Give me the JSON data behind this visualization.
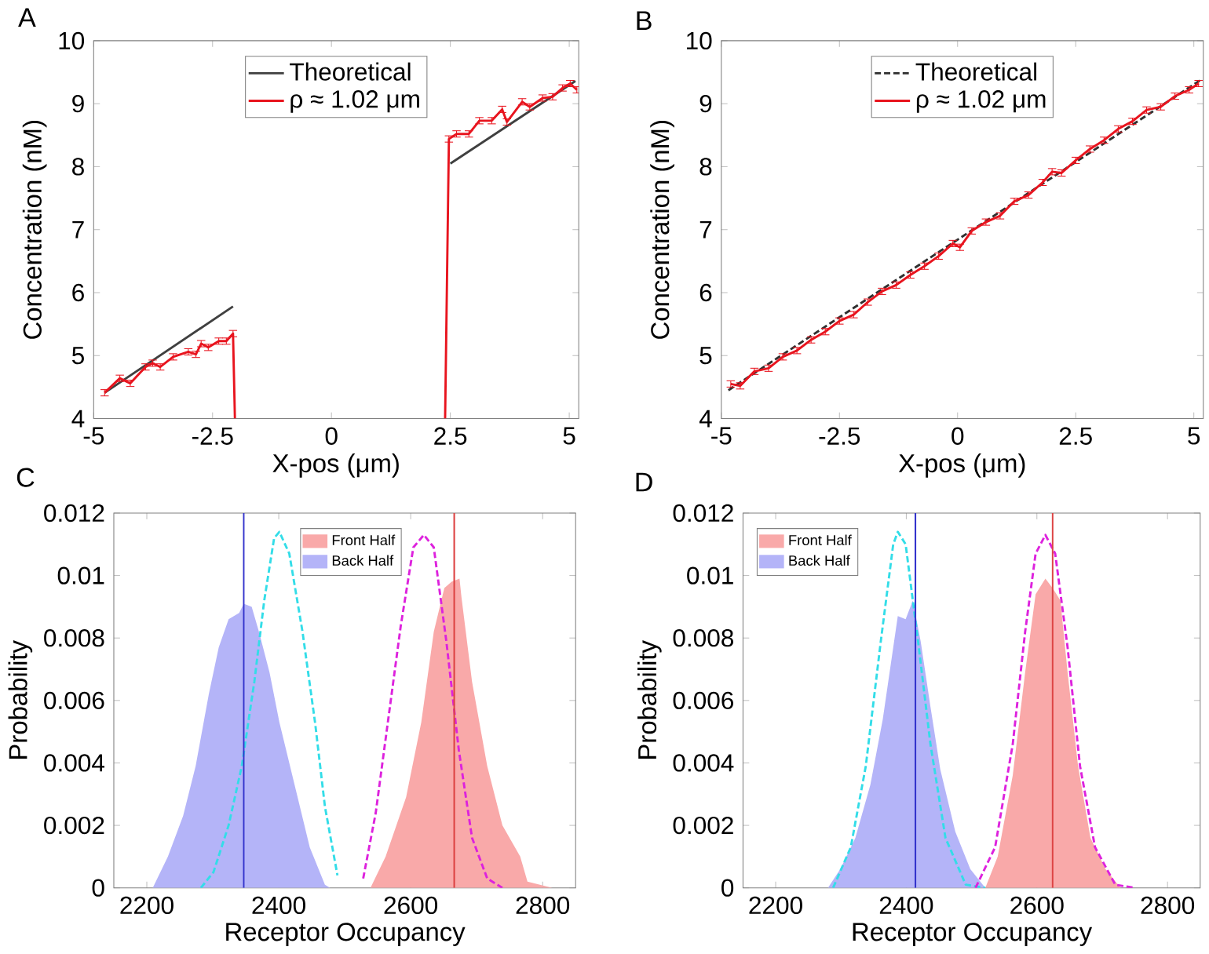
{
  "chart_data": [
    {
      "type": "line",
      "title": "A",
      "xlabel": "X-pos (μm)",
      "ylabel": "Concentration (nM)",
      "xlim": [
        -5,
        5.2
      ],
      "ylim": [
        4,
        10
      ],
      "xticks": [
        -5,
        -2.5,
        0,
        2.5,
        5
      ],
      "yticks": [
        4,
        5,
        6,
        7,
        8,
        9,
        10
      ],
      "legend": "top",
      "series": [
        {
          "name": "Theoretical",
          "color": "#404040",
          "line_style": "solid",
          "x": [
            -4.77,
            -2.07,
            0,
            2.5,
            5.13
          ],
          "values": [
            4.41,
            5.78,
            null,
            8.05,
            9.36
          ]
        },
        {
          "name": "ρ ≈ 1.02 μm",
          "color": "#e8141e",
          "line_style": "solid",
          "x": [
            -4.77,
            -4.45,
            -4.23,
            -3.91,
            -3.76,
            -3.6,
            -3.33,
            -3.01,
            -2.85,
            -2.74,
            -2.59,
            -2.37,
            -2.21,
            -2.07,
            -2.03,
            0,
            2.39,
            2.47,
            2.63,
            2.89,
            3.11,
            3.37,
            3.59,
            3.69,
            4.01,
            4.17,
            4.44,
            4.65,
            4.86,
            5.02,
            5.16
          ],
          "values": [
            4.41,
            4.64,
            4.56,
            4.82,
            4.88,
            4.82,
            4.98,
            5.06,
            5.02,
            5.19,
            5.13,
            5.23,
            5.23,
            5.35,
            4.0,
            null,
            4.0,
            8.44,
            8.52,
            8.52,
            8.73,
            8.73,
            8.91,
            8.71,
            9.03,
            8.95,
            9.09,
            9.11,
            9.25,
            9.32,
            9.22
          ],
          "errors": [
            0.05,
            0.05,
            0.05,
            0.05,
            0.05,
            0.05,
            0.05,
            0.05,
            0.05,
            0.05,
            0.05,
            0.05,
            0.05,
            0.05,
            null,
            null,
            null,
            0.05,
            0.05,
            0.05,
            0.05,
            0.05,
            0.05,
            0.05,
            0.05,
            0.05,
            0.05,
            0.05,
            0.05,
            0.05,
            0.05
          ]
        }
      ]
    },
    {
      "type": "line",
      "title": "B",
      "xlabel": "X-pos (μm)",
      "ylabel": "Concentration (nM)",
      "xlim": [
        -5,
        5.2
      ],
      "ylim": [
        4,
        10
      ],
      "xticks": [
        -5,
        -2.5,
        0,
        2.5,
        5
      ],
      "yticks": [
        4,
        5,
        6,
        7,
        8,
        9,
        10
      ],
      "legend": "top",
      "series": [
        {
          "name": "Theoretical",
          "color": "#303030",
          "line_style": "dashed",
          "x": [
            -4.85,
            5.15
          ],
          "values": [
            4.45,
            9.38
          ]
        },
        {
          "name": "ρ ≈ 1.02 μm",
          "color": "#e8141e",
          "line_style": "solid",
          "x": [
            -4.8,
            -4.6,
            -4.3,
            -4.0,
            -3.7,
            -3.4,
            -3.1,
            -2.8,
            -2.5,
            -2.2,
            -1.9,
            -1.6,
            -1.3,
            -1.0,
            -0.7,
            -0.4,
            -0.1,
            0.05,
            0.3,
            0.6,
            0.9,
            1.2,
            1.5,
            1.8,
            2.0,
            2.2,
            2.5,
            2.8,
            3.1,
            3.4,
            3.7,
            4.0,
            4.3,
            4.6,
            4.9,
            5.1
          ],
          "values": [
            4.55,
            4.52,
            4.75,
            4.8,
            4.98,
            5.08,
            5.25,
            5.38,
            5.55,
            5.65,
            5.85,
            6.02,
            6.12,
            6.28,
            6.42,
            6.58,
            6.78,
            6.72,
            6.98,
            7.12,
            7.22,
            7.45,
            7.55,
            7.75,
            7.92,
            7.9,
            8.1,
            8.28,
            8.42,
            8.6,
            8.72,
            8.9,
            8.95,
            9.12,
            9.22,
            9.32
          ],
          "errors": [
            0.05,
            0.05,
            0.05,
            0.05,
            0.05,
            0.05,
            0.05,
            0.05,
            0.05,
            0.05,
            0.05,
            0.05,
            0.05,
            0.05,
            0.05,
            0.05,
            0.05,
            0.05,
            0.05,
            0.05,
            0.05,
            0.05,
            0.05,
            0.05,
            0.05,
            0.05,
            0.05,
            0.05,
            0.05,
            0.05,
            0.05,
            0.05,
            0.05,
            0.05,
            0.05,
            0.05
          ]
        }
      ]
    },
    {
      "type": "area",
      "title": "C",
      "xlabel": "Receptor Occupancy",
      "ylabel": "Probability",
      "xlim": [
        2150,
        2850
      ],
      "ylim": [
        0,
        0.012
      ],
      "xticks": [
        2200,
        2400,
        2600,
        2800
      ],
      "yticks": [
        0,
        0.002,
        0.004,
        0.006,
        0.008,
        0.01,
        0.012
      ],
      "legend": "top",
      "series": [
        {
          "name": "Front Half",
          "color": "#f9a9a9",
          "x": [
            2539,
            2562,
            2593,
            2616,
            2635,
            2651,
            2662,
            2674,
            2677,
            2693,
            2716,
            2739,
            2766,
            2777,
            2815
          ],
          "values": [
            0,
            0.001,
            0.0029,
            0.0053,
            0.0082,
            0.0096,
            0.0098,
            0.0099,
            0.0093,
            0.0066,
            0.0039,
            0.002,
            0.001,
            0.0002,
            0
          ]
        },
        {
          "name": "Back Half",
          "color": "#b4b4f8",
          "x": [
            2209,
            2232,
            2255,
            2274,
            2294,
            2309,
            2324,
            2340,
            2347,
            2359,
            2370,
            2386,
            2401,
            2424,
            2447,
            2470,
            2478
          ],
          "values": [
            0,
            0.001,
            0.0023,
            0.0039,
            0.0062,
            0.0077,
            0.0086,
            0.0088,
            0.0091,
            0.009,
            0.0082,
            0.0069,
            0.0053,
            0.0033,
            0.0013,
            0.0001,
            0
          ]
        },
        {
          "type": "line",
          "color": "#33dde8",
          "line_style": "dashed",
          "x": [
            2282,
            2301,
            2324,
            2344,
            2363,
            2378,
            2393,
            2401,
            2416,
            2436,
            2455,
            2470,
            2489
          ],
          "values": [
            0,
            0.0005,
            0.002,
            0.0039,
            0.0066,
            0.0092,
            0.0112,
            0.0114,
            0.0107,
            0.0082,
            0.0053,
            0.0026,
            0.0004
          ]
        },
        {
          "type": "line",
          "color": "#dd22dd",
          "line_style": "dashed",
          "x": [
            2528,
            2547,
            2566,
            2585,
            2604,
            2620,
            2635,
            2654,
            2673,
            2693,
            2716,
            2739
          ],
          "values": [
            0.0003,
            0.0024,
            0.0054,
            0.0084,
            0.0109,
            0.0113,
            0.0109,
            0.0079,
            0.0044,
            0.0016,
            0.0003,
            0
          ]
        }
      ],
      "ref_lines": [
        {
          "axis": "x",
          "value": 2347,
          "color": "#3333cc"
        },
        {
          "axis": "x",
          "value": 2666,
          "color": "#dd4444"
        }
      ]
    },
    {
      "type": "area",
      "title": "D",
      "xlabel": "Receptor Occupancy",
      "ylabel": "Probability",
      "xlim": [
        2150,
        2850
      ],
      "ylim": [
        0,
        0.012
      ],
      "xticks": [
        2200,
        2400,
        2600,
        2800
      ],
      "yticks": [
        0,
        0.002,
        0.004,
        0.006,
        0.008,
        0.01,
        0.012
      ],
      "legend": "top left",
      "series": [
        {
          "name": "Front Half",
          "color": "#f9a9a9",
          "x": [
            2521,
            2540,
            2563,
            2582,
            2598,
            2613,
            2624,
            2636,
            2647,
            2663,
            2682,
            2705,
            2728
          ],
          "values": [
            0,
            0.001,
            0.0036,
            0.0069,
            0.0094,
            0.0099,
            0.0096,
            0.0092,
            0.0069,
            0.0039,
            0.0016,
            0.0006,
            0
          ]
        },
        {
          "name": "Back Half",
          "color": "#b4b4f8",
          "x": [
            2280,
            2299,
            2322,
            2345,
            2364,
            2380,
            2387,
            2399,
            2410,
            2422,
            2437,
            2452,
            2475,
            2498,
            2521
          ],
          "values": [
            0,
            0.0006,
            0.0016,
            0.0033,
            0.0054,
            0.0077,
            0.0087,
            0.0086,
            0.0092,
            0.0079,
            0.0058,
            0.0038,
            0.0018,
            0.0006,
            0
          ]
        },
        {
          "type": "line",
          "color": "#33dde8",
          "line_style": "dashed",
          "x": [
            2288,
            2315,
            2338,
            2361,
            2380,
            2387,
            2399,
            2418,
            2437,
            2460,
            2491,
            2521
          ],
          "values": [
            0,
            0.0013,
            0.0039,
            0.0079,
            0.011,
            0.0114,
            0.011,
            0.0079,
            0.0046,
            0.0016,
            0.0001,
            0
          ]
        },
        {
          "type": "line",
          "color": "#dd22dd",
          "line_style": "dashed",
          "x": [
            2506,
            2536,
            2563,
            2582,
            2598,
            2613,
            2628,
            2647,
            2666,
            2689,
            2720,
            2750
          ],
          "values": [
            0,
            0.0013,
            0.0046,
            0.0082,
            0.0107,
            0.0113,
            0.0107,
            0.0077,
            0.0039,
            0.0013,
            0.0001,
            0
          ]
        }
      ],
      "ref_lines": [
        {
          "axis": "x",
          "value": 2414,
          "color": "#3333cc"
        },
        {
          "axis": "x",
          "value": 2624,
          "color": "#dd4444"
        }
      ]
    }
  ]
}
